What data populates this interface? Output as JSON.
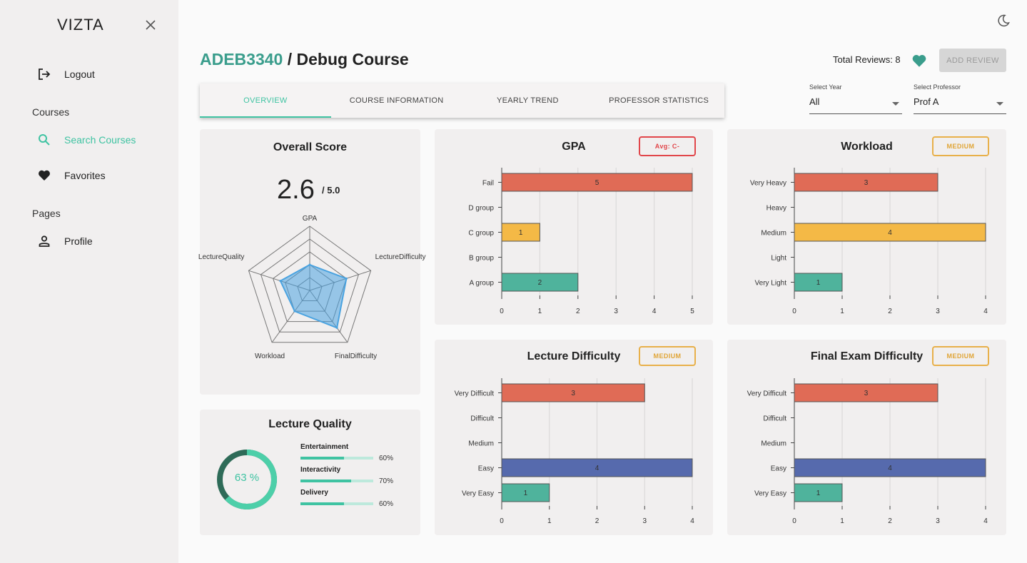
{
  "sidebar": {
    "brand": "VIZTA",
    "logout": "Logout",
    "courses_heading": "Courses",
    "search_courses": "Search Courses",
    "favorites": "Favorites",
    "pages_heading": "Pages",
    "profile": "Profile"
  },
  "header": {
    "course_code": "ADEB3340",
    "course_separator": " / ",
    "course_name": "Debug Course",
    "total_reviews": "Total Reviews: 8",
    "add_review": "ADD REVIEW"
  },
  "tabs": [
    "OVERVIEW",
    "COURSE INFORMATION",
    "YEARLY TREND",
    "PROFESSOR STATISTICS"
  ],
  "filters": {
    "year_caption": "Select Year",
    "year_value": "All",
    "professor_caption": "Select Professor",
    "professor_value": "Prof A"
  },
  "overall": {
    "title": "Overall Score",
    "score": "2.6",
    "max": "/ 5.0"
  },
  "colors": {
    "accent": "#3fc3a2",
    "red": "#e06b56",
    "yellow": "#f4b946",
    "teal": "#4fb39c",
    "blue": "#566aad",
    "radar": "#4aa3e0"
  },
  "chart_data": [
    {
      "type": "radar",
      "axes": [
        "GPA",
        "LectureDifficulty",
        "FinalDifficulty",
        "Workload",
        "LectureQuality"
      ],
      "values": [
        2,
        3,
        3.6,
        2,
        2.4
      ],
      "rlim": [
        0,
        5
      ]
    },
    {
      "type": "bar",
      "orientation": "horizontal",
      "title": "GPA",
      "badge": "Avg: C-",
      "categories": [
        "Fail",
        "D group",
        "C group",
        "B group",
        "A group"
      ],
      "values": [
        5,
        0,
        1,
        0,
        2
      ],
      "bar_colors": [
        "#e06b56",
        "#e06b56",
        "#f4b946",
        "#f4b946",
        "#4fb39c"
      ],
      "xlim": [
        0,
        5
      ],
      "xticks": [
        "0",
        "1",
        "2",
        "3",
        "4",
        "5"
      ]
    },
    {
      "type": "bar",
      "orientation": "horizontal",
      "title": "Workload",
      "badge": "MEDIUM",
      "categories": [
        "Very Heavy",
        "Heavy",
        "Medium",
        "Light",
        "Very Light"
      ],
      "values": [
        3,
        0,
        4,
        0,
        1
      ],
      "bar_colors": [
        "#e06b56",
        "#e06b56",
        "#f4b946",
        "#f4b946",
        "#4fb39c"
      ],
      "xlim": [
        0,
        4
      ],
      "xticks": [
        "0",
        "1",
        "2",
        "3",
        "4"
      ]
    },
    {
      "type": "bar",
      "orientation": "horizontal",
      "title": "Lecture Difficulty",
      "badge": "MEDIUM",
      "categories": [
        "Very Difficult",
        "Difficult",
        "Medium",
        "Easy",
        "Very Easy"
      ],
      "values": [
        3,
        0,
        0,
        4,
        1
      ],
      "bar_colors": [
        "#e06b56",
        "#e06b56",
        "#f4b946",
        "#566aad",
        "#4fb39c"
      ],
      "xlim": [
        0,
        4
      ],
      "xticks": [
        "0",
        "1",
        "2",
        "3",
        "4"
      ]
    },
    {
      "type": "bar",
      "orientation": "horizontal",
      "title": "Final Exam Difficulty",
      "badge": "MEDIUM",
      "categories": [
        "Very Difficult",
        "Difficult",
        "Medium",
        "Easy",
        "Very Easy"
      ],
      "values": [
        3,
        0,
        0,
        4,
        1
      ],
      "bar_colors": [
        "#e06b56",
        "#e06b56",
        "#f4b946",
        "#566aad",
        "#4fb39c"
      ],
      "xlim": [
        0,
        4
      ],
      "xticks": [
        "0",
        "1",
        "2",
        "3",
        "4"
      ]
    }
  ],
  "lecture_quality": {
    "title": "Lecture Quality",
    "overall_pct": 63,
    "overall_label": "63 %",
    "items": [
      {
        "label": "Entertainment",
        "pct": 60,
        "pct_label": "60%"
      },
      {
        "label": "Interactivity",
        "pct": 70,
        "pct_label": "70%"
      },
      {
        "label": "Delivery",
        "pct": 60,
        "pct_label": "60%"
      }
    ]
  }
}
